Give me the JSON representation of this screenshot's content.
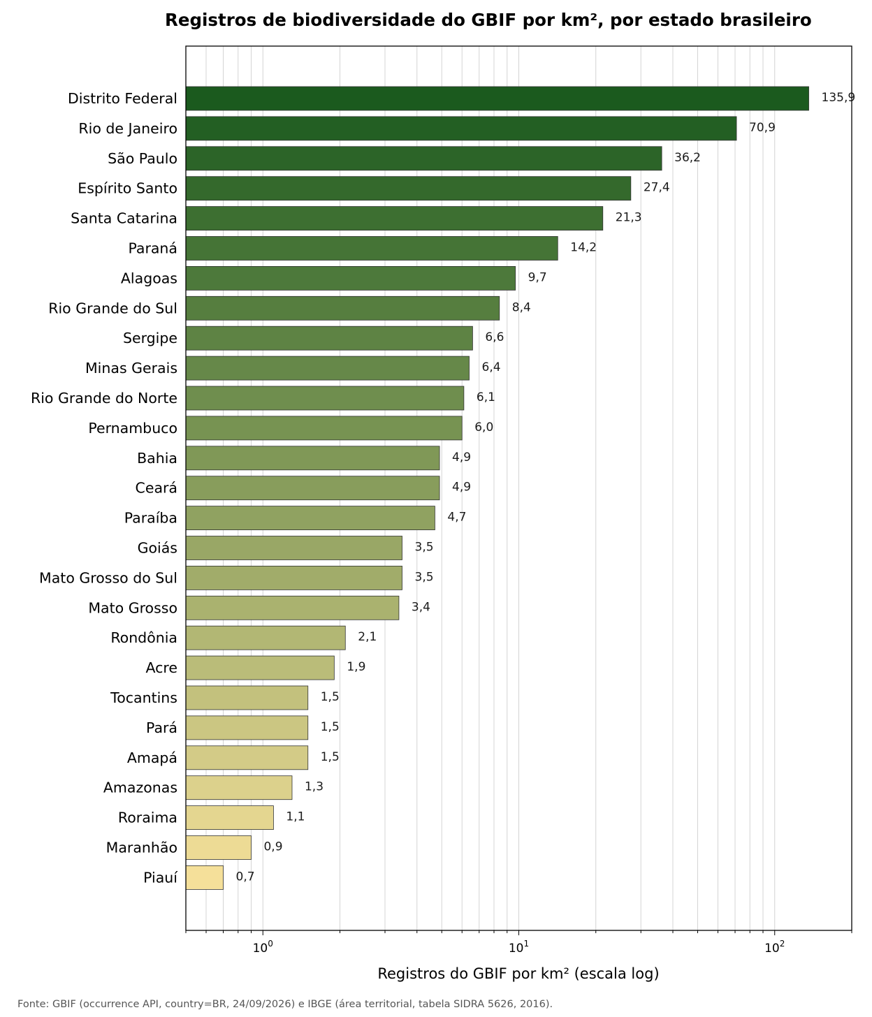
{
  "chart_data": {
    "type": "bar",
    "orientation": "horizontal",
    "title": "Registros de biodiversidade do GBIF por km², por estado brasileiro",
    "xlabel": "Registros do GBIF por km² (escala log)",
    "ylabel": "",
    "x_scale": "log",
    "xlim": [
      0.5,
      200
    ],
    "x_ticks": [
      {
        "value": 1,
        "base": "10",
        "exp": "0"
      },
      {
        "value": 10,
        "base": "10",
        "exp": "1"
      },
      {
        "value": 100,
        "base": "10",
        "exp": "2"
      }
    ],
    "grid": "vertical",
    "categories": [
      "Distrito Federal",
      "Rio de Janeiro",
      "São Paulo",
      "Espírito Santo",
      "Santa Catarina",
      "Paraná",
      "Alagoas",
      "Rio Grande do Sul",
      "Sergipe",
      "Minas Gerais",
      "Rio Grande do Norte",
      "Pernambuco",
      "Bahia",
      "Ceará",
      "Paraíba",
      "Goiás",
      "Mato Grosso do Sul",
      "Mato Grosso",
      "Rondônia",
      "Acre",
      "Tocantins",
      "Pará",
      "Amapá",
      "Amazonas",
      "Roraima",
      "Maranhão",
      "Piauí"
    ],
    "values": [
      135.9,
      70.9,
      36.2,
      27.4,
      21.3,
      14.2,
      9.7,
      8.4,
      6.6,
      6.4,
      6.1,
      6.0,
      4.9,
      4.9,
      4.7,
      3.5,
      3.5,
      3.4,
      2.1,
      1.9,
      1.5,
      1.5,
      1.5,
      1.3,
      1.1,
      0.9,
      0.7
    ],
    "value_labels": [
      "135,9",
      "70,9",
      "36,2",
      "27,4",
      "21,3",
      "14,2",
      "9,7",
      "8,4",
      "6,6",
      "6,4",
      "6,1",
      "6,0",
      "4,9",
      "4,9",
      "4,7",
      "3,5",
      "3,5",
      "3,4",
      "2,1",
      "1,9",
      "1,5",
      "1,5",
      "1,5",
      "1,3",
      "1,1",
      "0,9",
      "0,7"
    ],
    "color_scale": [
      "#1b5a1e",
      "#f5e09a"
    ]
  },
  "source_note": "Fonte: GBIF (occurrence API, country=BR, 24/09/2026) e IBGE (área territorial, tabela SIDRA 5626, 2016)."
}
